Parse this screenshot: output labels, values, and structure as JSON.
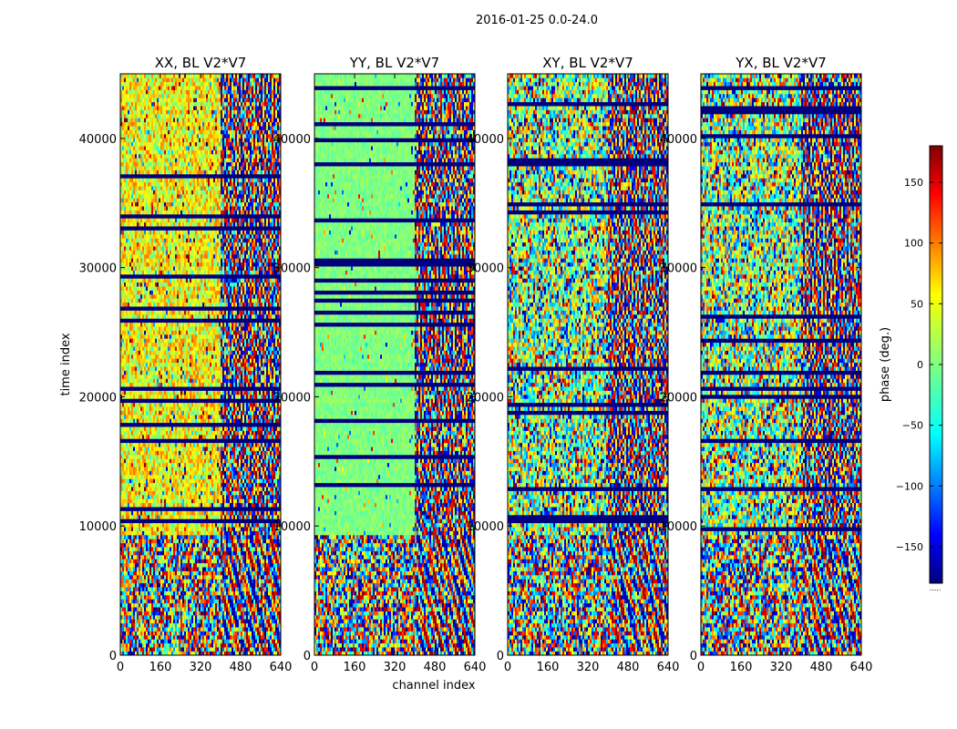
{
  "chart_data": {
    "type": "heatmap",
    "suptitle": "2016-01-25 0.0-24.0",
    "xlabel": "channel index",
    "ylabel": "time index",
    "xlim": [
      0,
      640
    ],
    "ylim": [
      0,
      45000
    ],
    "x_ticks": [
      0,
      160,
      320,
      480,
      640
    ],
    "y_ticks": [
      0,
      10000,
      20000,
      30000,
      40000
    ],
    "panels": [
      {
        "title": "XX, BL V2*V7",
        "pattern": "phase noise; warm band (~+90 deg) on channels 0-400 above time 9000"
      },
      {
        "title": "YY, BL V2*V7",
        "pattern": "phase noise; flat band (~0 deg) on channels 0-400 above time 9000"
      },
      {
        "title": "XY, BL V2*V7",
        "pattern": "phase noise across all channels"
      },
      {
        "title": "YX, BL V2*V7",
        "pattern": "phase noise across all channels"
      }
    ],
    "colorbar": {
      "label": "phase (deg.)",
      "range": [
        -180,
        180
      ],
      "ticks": [
        150,
        100,
        50,
        0,
        -50,
        -100,
        -150
      ],
      "tick_labels": [
        "150",
        "100",
        "50",
        "0",
        "−50",
        "−100",
        "−150"
      ],
      "colormap": "jet",
      "footnote": "....."
    }
  }
}
